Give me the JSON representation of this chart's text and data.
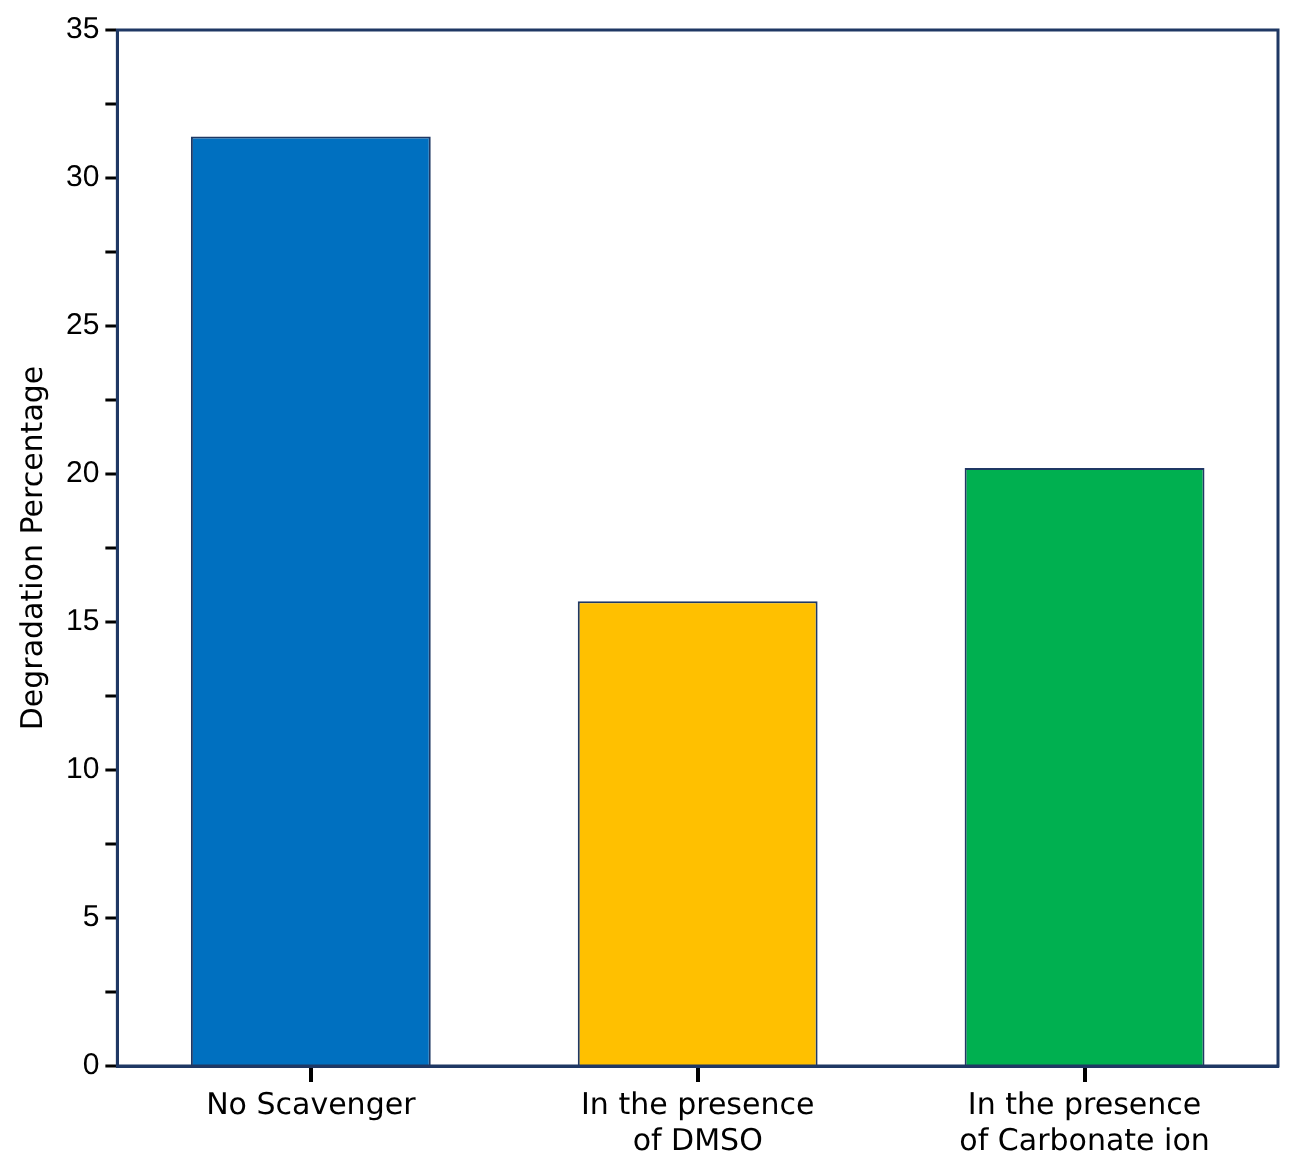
{
  "chart_data": {
    "type": "bar",
    "ylabel": "Degradation Percentage",
    "categories": [
      "No Scavenger",
      "In the presence of DMSO",
      "In the presence of Carbonate ion"
    ],
    "values": [
      31.4,
      15.7,
      20.2
    ],
    "colors": [
      "#0070c0",
      "#ffc000",
      "#00b050"
    ],
    "ylim": [
      0,
      35
    ],
    "yticks": [
      0,
      {
        "value": 2.5,
        "label": null
      },
      5,
      {
        "value": 7.5,
        "label": null
      },
      10,
      {
        "value": 12.5,
        "label": null
      },
      15,
      {
        "value": 17.5,
        "label": null
      },
      20,
      {
        "value": 22.5,
        "label": null
      },
      25,
      {
        "value": 27.5,
        "label": null
      },
      30,
      {
        "value": 32.5,
        "label": null
      },
      35
    ],
    "grid": false,
    "legend": false
  }
}
